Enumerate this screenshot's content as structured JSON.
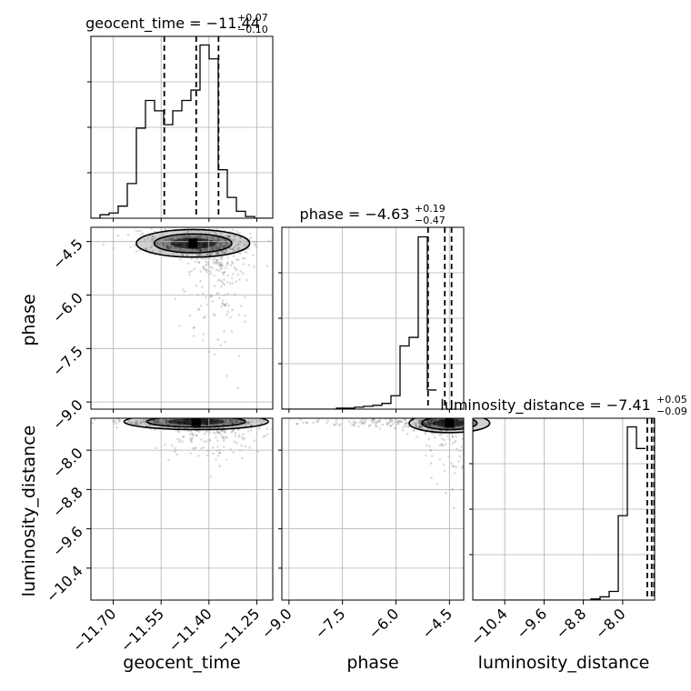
{
  "chart_data": {
    "type": "corner",
    "parameters": [
      "geocent_time",
      "phase",
      "luminosity_distance"
    ],
    "titles": [
      {
        "param": "geocent_time",
        "prefix": "geocent_time = ",
        "median": "−11.44",
        "plus": "+0.07",
        "minus": "−0.10"
      },
      {
        "param": "phase",
        "prefix": "phase = ",
        "median": "−4.63",
        "plus": "+0.19",
        "minus": "−0.47"
      },
      {
        "param": "luminosity_distance",
        "prefix": "luminosity_distance = ",
        "median": "−7.41",
        "plus": "+0.05",
        "minus": "−0.09"
      }
    ],
    "axis_labels": {
      "x": [
        "geocent_time",
        "phase",
        "luminosity_distance"
      ],
      "y": [
        "phase",
        "luminosity_distance"
      ]
    },
    "ranges": {
      "geocent_time": [
        -11.77,
        -11.2
      ],
      "phase": [
        -9.2,
        -4.1
      ],
      "luminosity_distance": [
        -11.05,
        -7.35
      ]
    },
    "ticks": {
      "geocent_time": [
        {
          "v": -11.7,
          "label": "−11.70"
        },
        {
          "v": -11.55,
          "label": "−11.55"
        },
        {
          "v": -11.4,
          "label": "−11.40"
        },
        {
          "v": -11.25,
          "label": "−11.25"
        }
      ],
      "phase": [
        {
          "v": -9.0,
          "label": "−9.0"
        },
        {
          "v": -7.5,
          "label": "−7.5"
        },
        {
          "v": -6.0,
          "label": "−6.0"
        },
        {
          "v": -4.5,
          "label": "−4.5"
        }
      ],
      "luminosity_distance": [
        {
          "v": -10.4,
          "label": "−10.4"
        },
        {
          "v": -9.6,
          "label": "−9.6"
        },
        {
          "v": -8.8,
          "label": "−8.8"
        },
        {
          "v": -8.0,
          "label": "−8.0"
        }
      ]
    },
    "quantiles": {
      "geocent_time": [
        -11.54,
        -11.44,
        -11.37
      ],
      "phase": [
        -5.1,
        -4.63,
        -4.44
      ],
      "luminosity_distance": [
        -7.5,
        -7.41,
        -7.36
      ]
    },
    "histograms": {
      "geocent_time": {
        "edges_start": -11.77,
        "bin_width": 0.0285,
        "counts": [
          0,
          0.2,
          0.3,
          0.7,
          2,
          5.2,
          6.8,
          6.2,
          5.4,
          6.2,
          6.8,
          7.4,
          10,
          9.2,
          2.8,
          1.2,
          0.4,
          0.1,
          0,
          0
        ]
      },
      "phase": {
        "edges_start": -9.2,
        "bin_width": 0.255,
        "counts": [
          0,
          0,
          0,
          0,
          0,
          0,
          0.1,
          0.1,
          0.2,
          0.3,
          0.4,
          0.6,
          1.4,
          6.6,
          7.5,
          18,
          2
        ]
      },
      "luminosity_distance": {
        "edges_start": -11.05,
        "bin_width": 0.185,
        "counts": [
          0,
          0,
          0,
          0,
          0,
          0,
          0,
          0,
          0,
          0,
          0,
          0,
          0,
          0.1,
          0.3,
          0.8,
          7.8,
          16,
          14
        ]
      }
    },
    "hist_max": {
      "geocent_time": 10.5,
      "phase": 19,
      "luminosity_distance": 16.8
    },
    "hist_ytick_fractions": [
      0.25,
      0.5,
      0.75
    ],
    "grid": true
  }
}
